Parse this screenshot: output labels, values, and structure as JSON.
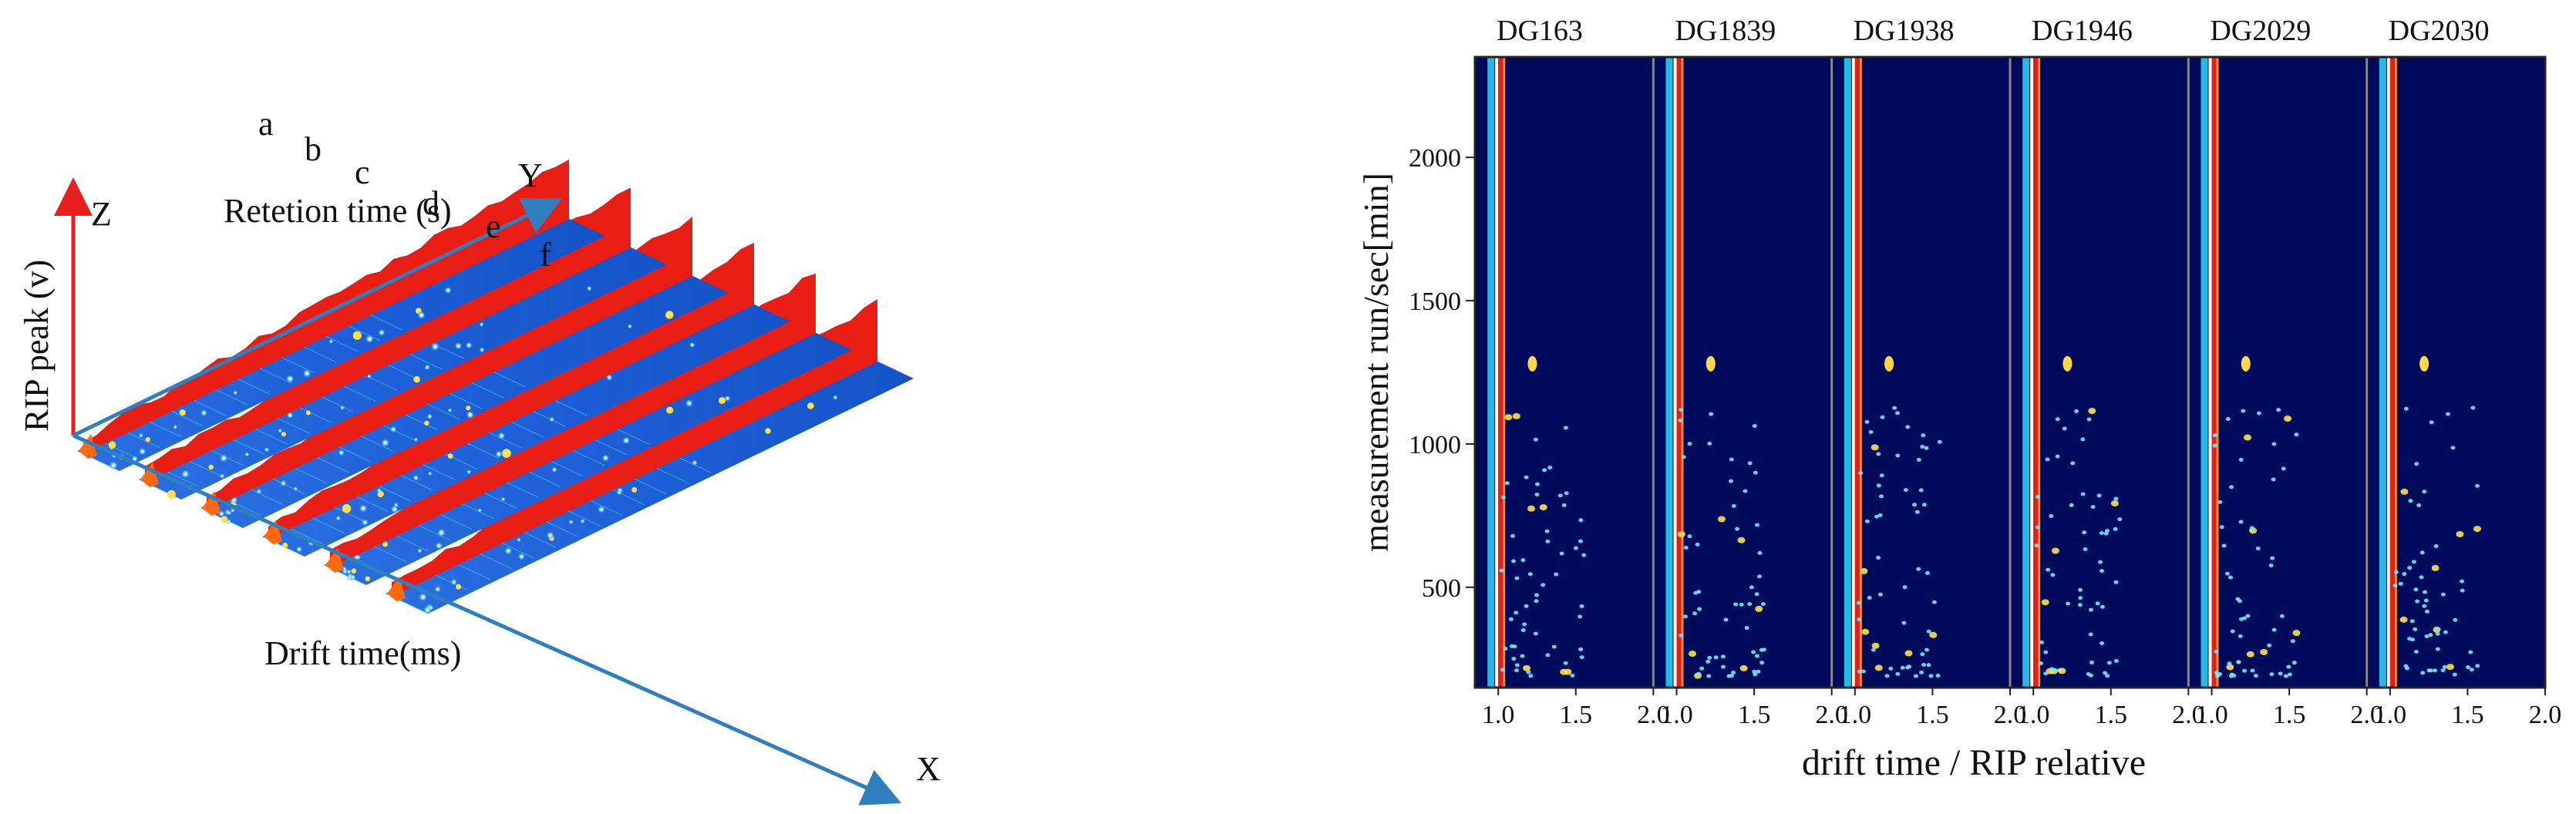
{
  "chart_data": [
    {
      "type": "3d-spectra",
      "title": "",
      "axes": {
        "z": {
          "letter": "Z",
          "label": "RIP peak (v)"
        },
        "y": {
          "letter": "Y",
          "label": "Retetion time (s)"
        },
        "x": {
          "letter": "X",
          "label": "Drift time(ms)"
        }
      },
      "series": [
        {
          "name": "a"
        },
        {
          "name": "b"
        },
        {
          "name": "c"
        },
        {
          "name": "d"
        },
        {
          "name": "e"
        },
        {
          "name": "f"
        }
      ]
    },
    {
      "type": "heatmap",
      "panels": [
        "DG163",
        "DG1839",
        "DG1938",
        "DG1946",
        "DG2029",
        "DG2030"
      ],
      "xlabel": "drift time / RIP relative",
      "ylabel": "measurement run/sec[min]",
      "xlim": [
        0.85,
        2.0
      ],
      "ylim": [
        150,
        2350
      ],
      "xticks": [
        1.0,
        1.5,
        2.0
      ],
      "yticks": [
        500,
        1000,
        1500,
        2000
      ],
      "rip_position": 1.0,
      "colors": {
        "background": "#000a5a",
        "rip_cyan": "#27b8e8",
        "rip_red": "#e0201a",
        "frame": "#222222"
      }
    }
  ]
}
